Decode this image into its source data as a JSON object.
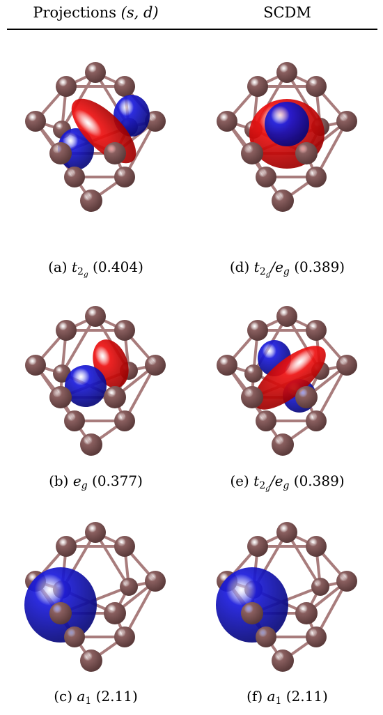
{
  "header": {
    "left_title_text": "Projections ",
    "left_title_math": "(s, d)",
    "right_title": "SCDM"
  },
  "panels": [
    {
      "id": "a",
      "label": "(a)",
      "symbol_main": "t",
      "symbol_sub": "2",
      "symbol_subsub": "g",
      "value": "(0.404)",
      "lobes": "t2g-a"
    },
    {
      "id": "d",
      "label": "(d)",
      "symbol_main": "t",
      "symbol_sub": "2",
      "symbol_subsub": "g",
      "symbol_extra": "/e",
      "symbol_extra_sub": "g",
      "value": "(0.389)",
      "lobes": "t2g-eg-d"
    },
    {
      "id": "b",
      "label": "(b)",
      "symbol_main": "e",
      "symbol_sub": "g",
      "value": "(0.377)",
      "lobes": "eg-b"
    },
    {
      "id": "e",
      "label": "(e)",
      "symbol_main": "t",
      "symbol_sub": "2",
      "symbol_subsub": "g",
      "symbol_extra": "/e",
      "symbol_extra_sub": "g",
      "value": "(0.389)",
      "lobes": "t2g-eg-e"
    },
    {
      "id": "c",
      "label": "(c)",
      "symbol_main": "a",
      "symbol_sub": "1",
      "value": "(2.11)",
      "lobes": "a1"
    },
    {
      "id": "f",
      "label": "(f)",
      "symbol_main": "a",
      "symbol_sub": "1",
      "value": "(2.11)",
      "lobes": "a1"
    }
  ],
  "colors": {
    "atom": "#8a5f5f",
    "bond": "#a87c7c",
    "positive_lobe": "#ee1111",
    "negative_lobe": "#1a1adc"
  }
}
